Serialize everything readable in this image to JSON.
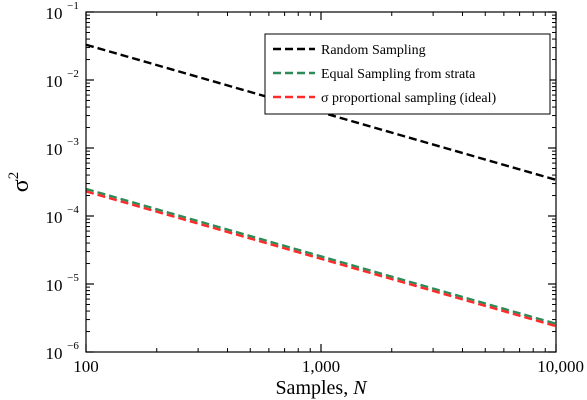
{
  "chart_data": {
    "type": "line",
    "xscale": "log",
    "yscale": "log",
    "xlim": [
      100,
      10000
    ],
    "ylim": [
      1e-06,
      0.1
    ],
    "x_ticks": [
      {
        "value": 100,
        "label": "100"
      },
      {
        "value": 1000,
        "label": "1,000"
      },
      {
        "value": 10000,
        "label": "10,000"
      }
    ],
    "y_ticks": [
      {
        "value": 1e-06,
        "base": "10",
        "exp": "−6"
      },
      {
        "value": 1e-05,
        "base": "10",
        "exp": "−5"
      },
      {
        "value": 0.0001,
        "base": "10",
        "exp": "−4"
      },
      {
        "value": 0.001,
        "base": "10",
        "exp": "−3"
      },
      {
        "value": 0.01,
        "base": "10",
        "exp": "−2"
      },
      {
        "value": 0.1,
        "base": "10",
        "exp": "−1"
      }
    ],
    "xlabel_text": "Samples, ",
    "xlabel_var": "N",
    "ylabel_base": "σ",
    "ylabel_exp": "2",
    "legend_position": "top-right",
    "grid": false,
    "series": [
      {
        "name": "Random Sampling",
        "color": "#000000",
        "x": [
          100,
          10000
        ],
        "y": [
          0.033,
          0.00034
        ]
      },
      {
        "name": "Equal Sampling from strata",
        "color": "#2e8b57",
        "x": [
          100,
          10000
        ],
        "y": [
          0.00025,
          2.6e-06
        ]
      },
      {
        "name": "σ proportional sampling (ideal)",
        "color": "#ff2a2a",
        "x": [
          100,
          10000
        ],
        "y": [
          0.00023,
          2.4e-06
        ]
      }
    ]
  }
}
